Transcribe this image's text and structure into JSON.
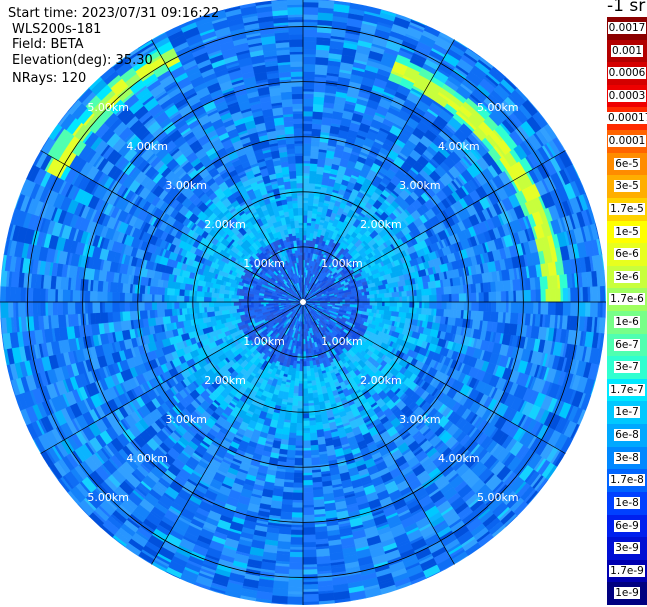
{
  "header": {
    "start_time": "Start time: 2023/07/31 09:16:22",
    "device": "WLS200s-181",
    "field": "Field: BETA",
    "elevation": "Elevation(deg): 35.30",
    "nrays": "NRays: 120"
  },
  "chart_data": {
    "type": "heatmap",
    "projection": "polar-ppi",
    "nrays": 120,
    "range_unit": "km",
    "range_max_km": 5.5,
    "range_rings_km": [
      1,
      2,
      3,
      4,
      5
    ],
    "range_ring_labels": [
      "1.00km",
      "2.00km",
      "3.00km",
      "4.00km",
      "5.00km"
    ],
    "azimuth_lines_deg": [
      0,
      30,
      60,
      90,
      120,
      150,
      180,
      210,
      240,
      270,
      300,
      330
    ],
    "colorbar": {
      "unit_label": "-1 sr",
      "levels": [
        "0.0017",
        "0.001",
        "0.0006",
        "0.0003",
        "0.00017",
        "0.0001",
        "6e-5",
        "3e-5",
        "1.7e-5",
        "1e-5",
        "6e-6",
        "3e-6",
        "1.7e-6",
        "1e-6",
        "6e-7",
        "3e-7",
        "1.7e-7",
        "1e-7",
        "6e-8",
        "3e-8",
        "1.7e-8",
        "1e-8",
        "6e-9",
        "3e-9",
        "1.7e-9",
        "1e-9"
      ],
      "colors": [
        "#8b0000",
        "#b30000",
        "#d40000",
        "#ee0000",
        "#ff2a00",
        "#ff6400",
        "#ff8c00",
        "#ffae00",
        "#ffd200",
        "#ffff00",
        "#e8ff1e",
        "#c8ff3c",
        "#a0ff60",
        "#78ff88",
        "#50ffb0",
        "#30ffd0",
        "#00e8ff",
        "#00c8ff",
        "#00a8ff",
        "#0088ff",
        "#0064ff",
        "#0040ff",
        "#0020ee",
        "#0010d4",
        "#0000b0",
        "#000080"
      ]
    },
    "field_regions": [
      {
        "name": "near-range low backscatter",
        "range_km": [
          0,
          1.2
        ],
        "value_approx": "1e-8"
      },
      {
        "name": "inner region",
        "range_km": [
          1.2,
          2.5
        ],
        "value_approx": "1e-7"
      },
      {
        "name": "outer region",
        "range_km": [
          2.5,
          5.5
        ],
        "value_approx": "3e-8"
      },
      {
        "name": "elevated band east",
        "azimuth_deg": [
          20,
          90
        ],
        "range_km": [
          4.3,
          4.8
        ],
        "value_approx": "1e-5"
      },
      {
        "name": "elevated band northwest",
        "azimuth_deg": [
          300,
          330
        ],
        "range_km": [
          4.9,
          5.2
        ],
        "value_approx": "1e-5"
      }
    ]
  },
  "colors": {
    "ring": "#000000",
    "label": "#ffffff"
  }
}
